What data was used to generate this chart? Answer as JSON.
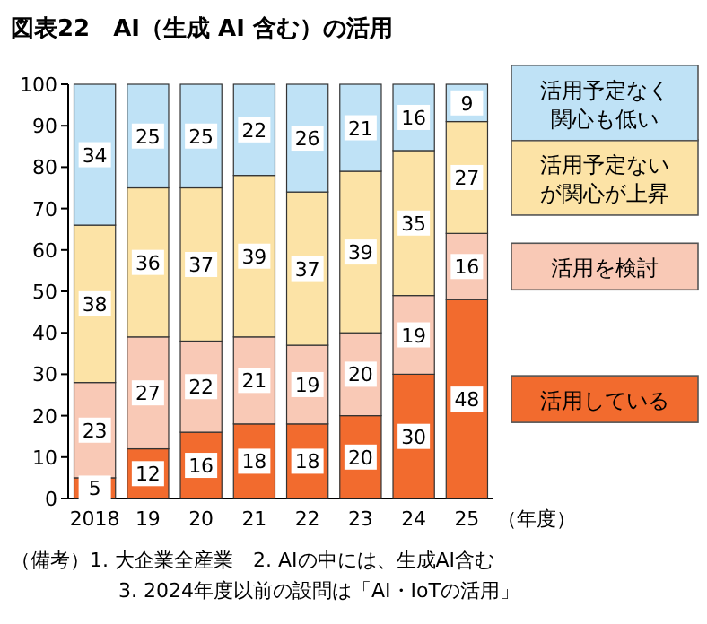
{
  "chart_data": {
    "type": "bar",
    "stacked": true,
    "title": "図表22　AI（生成 AI 含む）の活用",
    "xlabel": "（年度）",
    "categories": [
      "2018",
      "19",
      "20",
      "21",
      "22",
      "23",
      "24",
      "25"
    ],
    "series": [
      {
        "name": "活用している",
        "color": "#f26b2e",
        "values": [
          5,
          12,
          16,
          18,
          18,
          20,
          30,
          48
        ]
      },
      {
        "name": "活用を検討",
        "color": "#f9c9b6",
        "values": [
          23,
          27,
          22,
          21,
          19,
          20,
          19,
          16
        ]
      },
      {
        "name": "活用予定ないが関心が上昇",
        "color": "#fce3a6",
        "values": [
          38,
          36,
          37,
          39,
          37,
          39,
          35,
          27
        ]
      },
      {
        "name": "活用予定なく関心も低い",
        "color": "#bfe2f6",
        "values": [
          34,
          25,
          25,
          22,
          26,
          21,
          16,
          9
        ]
      }
    ],
    "ylim": [
      0,
      100
    ],
    "yticks": [
      0,
      10,
      20,
      30,
      40,
      50,
      60,
      70,
      80,
      90,
      100
    ],
    "data_labels": true,
    "legend": "right",
    "grid": false,
    "annotations": [
      "（備考）1. 大企業全産業　2. AIの中には、生成AI含む",
      "3. 2024年度以前の設問は「AI・IoTの活用」"
    ]
  }
}
